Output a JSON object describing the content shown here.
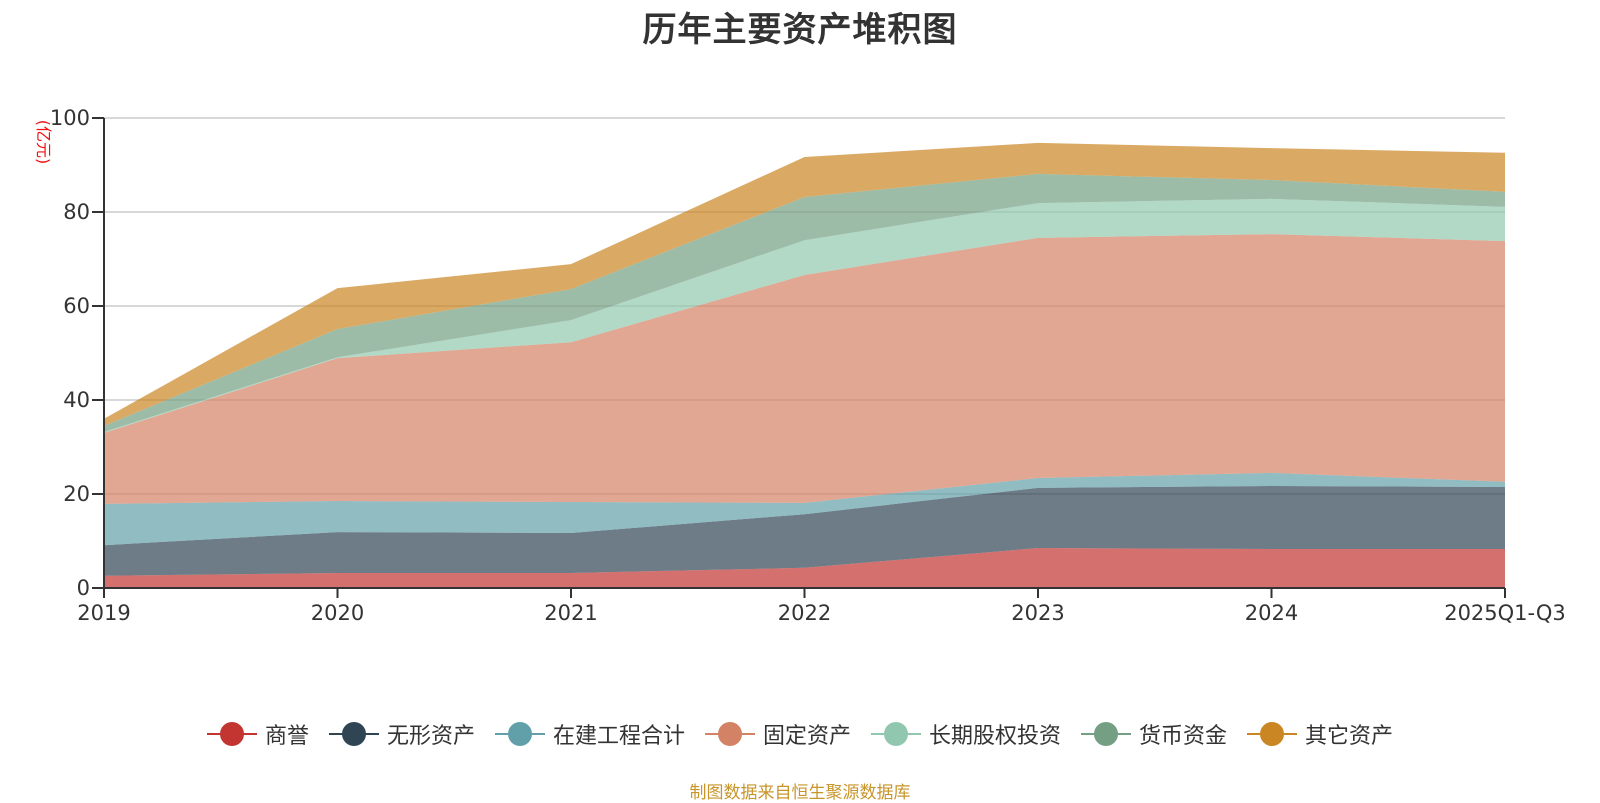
{
  "chart_data": {
    "type": "area",
    "stacked": true,
    "title": "历年主要资产堆积图",
    "unit_label": "(亿元)",
    "xlabel": "",
    "ylabel": "(亿元)",
    "categories": [
      "2019",
      "2020",
      "2021",
      "2022",
      "2023",
      "2024",
      "2025Q1-Q3"
    ],
    "ylim": [
      0,
      100
    ],
    "yticks": [
      0,
      20,
      40,
      60,
      80,
      100
    ],
    "grid": true,
    "legend_position": "bottom",
    "series": [
      {
        "name": "商誉",
        "color": "#c23531",
        "values": [
          2.6,
          3.2,
          3.2,
          4.3,
          8.5,
          8.3,
          8.3
        ]
      },
      {
        "name": "无形资产",
        "color": "#2f4554",
        "values": [
          6.5,
          8.7,
          8.5,
          11.4,
          12.8,
          13.4,
          13.2
        ]
      },
      {
        "name": "在建工程合计",
        "color": "#61a0a8",
        "values": [
          8.8,
          6.6,
          6.6,
          2.4,
          2.1,
          2.8,
          1.1
        ]
      },
      {
        "name": "固定资产",
        "color": "#d48265",
        "values": [
          15.1,
          30.4,
          34.0,
          48.5,
          51.1,
          50.8,
          51.2
        ]
      },
      {
        "name": "长期股权投资",
        "color": "#91c7ae",
        "values": [
          0.2,
          0.2,
          4.7,
          7.4,
          7.4,
          7.5,
          7.3
        ]
      },
      {
        "name": "货币资金",
        "color": "#749f83",
        "values": [
          1.3,
          6.0,
          6.6,
          9.2,
          6.2,
          4.0,
          3.2
        ]
      },
      {
        "name": "其它资产",
        "color": "#ca8622",
        "values": [
          1.5,
          8.7,
          5.3,
          8.5,
          6.6,
          6.8,
          8.3
        ]
      }
    ]
  },
  "footer": "制图数据来自恒生聚源数据库"
}
